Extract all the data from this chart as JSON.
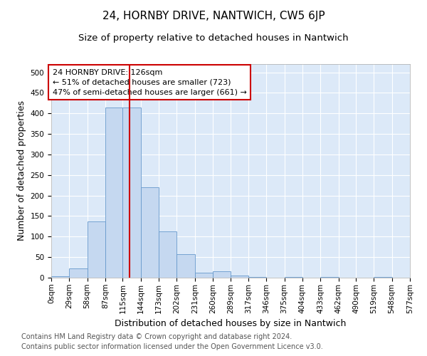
{
  "title": "24, HORNBY DRIVE, NANTWICH, CW5 6JP",
  "subtitle": "Size of property relative to detached houses in Nantwich",
  "xlabel": "Distribution of detached houses by size in Nantwich",
  "ylabel": "Number of detached properties",
  "bin_edges": [
    0,
    29,
    58,
    87,
    115,
    144,
    173,
    202,
    231,
    260,
    289,
    317,
    346,
    375,
    404,
    433,
    462,
    490,
    519,
    548,
    577
  ],
  "bar_heights": [
    3,
    22,
    137,
    415,
    415,
    220,
    112,
    57,
    13,
    15,
    6,
    2,
    0,
    2,
    0,
    1,
    0,
    0,
    2,
    0
  ],
  "bar_color": "#c5d8f0",
  "bar_edge_color": "#6699cc",
  "property_size": 126,
  "vline_color": "#cc0000",
  "annotation_text": "24 HORNBY DRIVE: 126sqm\n← 51% of detached houses are smaller (723)\n47% of semi-detached houses are larger (661) →",
  "annotation_box_color": "#ffffff",
  "annotation_box_edge_color": "#cc0000",
  "tick_labels": [
    "0sqm",
    "29sqm",
    "58sqm",
    "87sqm",
    "115sqm",
    "144sqm",
    "173sqm",
    "202sqm",
    "231sqm",
    "260sqm",
    "289sqm",
    "317sqm",
    "346sqm",
    "375sqm",
    "404sqm",
    "433sqm",
    "462sqm",
    "490sqm",
    "519sqm",
    "548sqm",
    "577sqm"
  ],
  "ylim": [
    0,
    520
  ],
  "yticks": [
    0,
    50,
    100,
    150,
    200,
    250,
    300,
    350,
    400,
    450,
    500
  ],
  "plot_bg_color": "#dce9f8",
  "grid_color": "#ffffff",
  "footer_line1": "Contains HM Land Registry data © Crown copyright and database right 2024.",
  "footer_line2": "Contains public sector information licensed under the Open Government Licence v3.0.",
  "title_fontsize": 11,
  "subtitle_fontsize": 9.5,
  "axis_label_fontsize": 9,
  "tick_fontsize": 7.5,
  "footer_fontsize": 7,
  "annotation_fontsize": 8
}
